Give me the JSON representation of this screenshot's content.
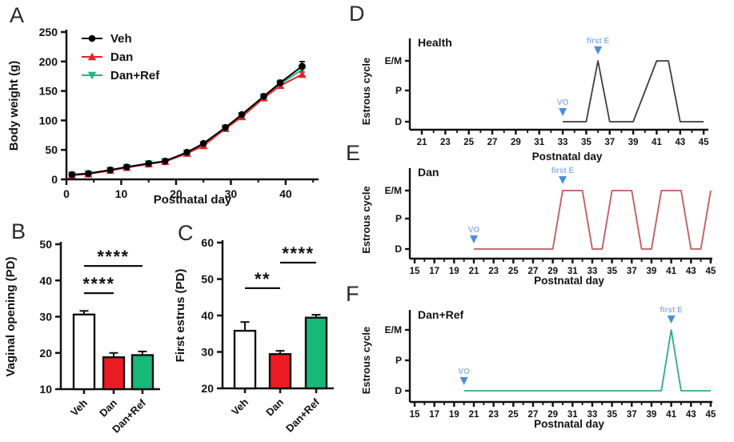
{
  "figure": {
    "background": "#ffffff",
    "axis_color": "#111111",
    "annotation_marker_blue": "#4a8fdb",
    "annotation_text_blue": "#8fb4e3"
  },
  "chart_data": [
    {
      "panel": "A",
      "type": "line",
      "xlabel": "Postnatal day",
      "ylabel": "Body weight (g)",
      "xlim": [
        0,
        46
      ],
      "ylim": [
        0,
        250
      ],
      "xticks": [
        0,
        10,
        20,
        30,
        40
      ],
      "xminor": [
        5,
        15,
        25,
        35,
        45
      ],
      "yticks": [
        0,
        50,
        100,
        150,
        200,
        250
      ],
      "legend_position": "top-left",
      "x": [
        1,
        4,
        8,
        11,
        15,
        18,
        22,
        25,
        29,
        32,
        36,
        39,
        43
      ],
      "series": [
        {
          "name": "Veh",
          "color": "#000000",
          "marker": "circle",
          "values": [
            8,
            10,
            16,
            21,
            27,
            31,
            46,
            61,
            88,
            110,
            141,
            164,
            192
          ],
          "errors": [
            1,
            1,
            1,
            1,
            1.5,
            1.5,
            2,
            2.5,
            3,
            3,
            3,
            4,
            8
          ]
        },
        {
          "name": "Dan",
          "color": "#e42528",
          "marker": "triangle-up",
          "values": [
            7,
            9,
            15,
            20,
            26,
            30,
            44,
            57,
            86,
            106,
            138,
            159,
            178
          ],
          "errors": [
            1,
            1,
            1,
            1,
            1,
            1,
            2,
            2,
            2.5,
            3,
            3,
            3,
            4
          ]
        },
        {
          "name": "Dan+Ref",
          "color": "#1eb87e",
          "marker": "triangle-down",
          "values": [
            7.5,
            9.5,
            15.5,
            20.5,
            26.5,
            30.5,
            45,
            59,
            87,
            108,
            140,
            162,
            186
          ],
          "errors": [
            1,
            1,
            1,
            1,
            1,
            1,
            2,
            2,
            2.5,
            3,
            3,
            3,
            4
          ]
        }
      ]
    },
    {
      "panel": "B",
      "type": "bar",
      "ylabel": "Vaginal opening (PD)",
      "ylim": [
        10,
        50
      ],
      "yticks": [
        10,
        20,
        30,
        40,
        50
      ],
      "categories": [
        "Veh",
        "Dan",
        "Dan+Ref"
      ],
      "values": [
        30.6,
        18.8,
        19.4
      ],
      "errors": [
        1.0,
        1.2,
        1.0
      ],
      "bar_colors": [
        "#ffffff",
        "#ec1c24",
        "#17b879"
      ],
      "significance": [
        {
          "from": 0,
          "to": 1,
          "label": "****",
          "y": 36.5
        },
        {
          "from": 0,
          "to": 2,
          "label": "****",
          "y": 44
        }
      ]
    },
    {
      "panel": "C",
      "type": "bar",
      "ylabel": "First estrus (PD)",
      "ylim": [
        20,
        60
      ],
      "yticks": [
        20,
        30,
        40,
        50,
        60
      ],
      "categories": [
        "Veh",
        "Dan",
        "Dan+Ref"
      ],
      "values": [
        35.8,
        29.4,
        39.4
      ],
      "errors": [
        2.4,
        0.9,
        0.8
      ],
      "bar_colors": [
        "#ffffff",
        "#ec1c24",
        "#17b879"
      ],
      "significance": [
        {
          "from": 0,
          "to": 1,
          "label": "**",
          "y": 47.5
        },
        {
          "from": 1,
          "to": 2,
          "label": "****",
          "y": 54.5
        }
      ]
    },
    {
      "panel": "D",
      "type": "estrous",
      "title": "Health",
      "xlabel": "Postnatal day",
      "ylabel": "Estrous cycle",
      "line_color": "#3d3d3d",
      "xticks": [
        21,
        23,
        25,
        27,
        29,
        31,
        33,
        35,
        37,
        39,
        41,
        43,
        45
      ],
      "states": [
        "D",
        "P",
        "E/M"
      ],
      "points": [
        [
          33,
          0
        ],
        [
          35,
          0
        ],
        [
          36,
          2
        ],
        [
          37,
          0
        ],
        [
          39,
          0
        ],
        [
          41,
          2
        ],
        [
          42,
          2
        ],
        [
          43,
          0
        ],
        [
          45,
          0
        ]
      ],
      "vo_day": 33,
      "vo_label": "VO",
      "first_e_day": 36,
      "first_e_label": "first E"
    },
    {
      "panel": "E",
      "type": "estrous",
      "title": "Dan",
      "xlabel": "Postnatal day",
      "ylabel": "Estrous cycle",
      "line_color": "#c4585c",
      "xticks": [
        15,
        17,
        19,
        21,
        23,
        25,
        27,
        29,
        31,
        33,
        35,
        37,
        39,
        41,
        43,
        45
      ],
      "states": [
        "D",
        "P",
        "E/M"
      ],
      "points": [
        [
          21,
          0
        ],
        [
          29,
          0
        ],
        [
          30,
          2
        ],
        [
          32,
          2
        ],
        [
          33,
          0
        ],
        [
          34,
          0
        ],
        [
          35,
          2
        ],
        [
          37,
          2
        ],
        [
          38,
          0
        ],
        [
          39,
          0
        ],
        [
          40,
          2
        ],
        [
          42,
          2
        ],
        [
          43,
          0
        ],
        [
          44,
          0
        ],
        [
          45,
          2
        ]
      ],
      "vo_day": 21,
      "vo_label": "VO",
      "first_e_day": 30,
      "first_e_label": "first E"
    },
    {
      "panel": "F",
      "type": "estrous",
      "title": "Dan+Ref",
      "xlabel": "Postnatal day",
      "ylabel": "Estrous cycle",
      "line_color": "#2aaf7c",
      "xticks": [
        15,
        17,
        19,
        21,
        23,
        25,
        27,
        29,
        31,
        33,
        35,
        37,
        39,
        41,
        43,
        45
      ],
      "states": [
        "D",
        "P",
        "E/M"
      ],
      "points": [
        [
          20,
          0
        ],
        [
          40,
          0
        ],
        [
          41,
          2
        ],
        [
          42,
          0
        ],
        [
          45,
          0
        ]
      ],
      "vo_day": 20,
      "vo_label": "VO",
      "first_e_day": 41,
      "first_e_label": "first E"
    }
  ]
}
